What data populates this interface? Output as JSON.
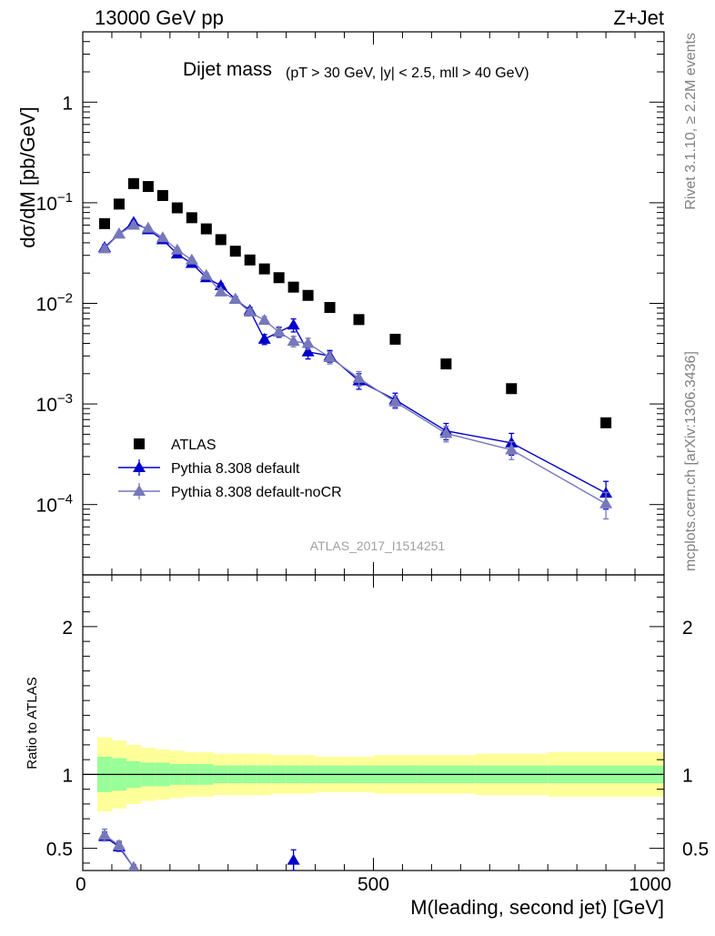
{
  "header": {
    "left": "13000 GeV pp",
    "right": "Z+Jet"
  },
  "side": {
    "rivet": "Rivet 3.1.10, ≥ 2.2M events",
    "mcplots": "mcplots.cern.ch [arXiv:1306.3436]"
  },
  "plot_title": {
    "main": "Dijet mass",
    "cuts": "(pT > 30 GeV, |y| < 2.5, mll > 40 GeV)"
  },
  "watermark": "ATLAS_2017_I1514251",
  "colors": {
    "atlas": "#000000",
    "pythia_default": "#0000cc",
    "pythia_nocr": "#7777bb",
    "band_outer": "#ffff99",
    "band_inner": "#99ff99"
  },
  "chart_data": [
    {
      "type": "scatter",
      "name": "main",
      "ylabel": "dσ/dM [pb/GeV]",
      "xlim": [
        0,
        1000
      ],
      "ylim": [
        2e-05,
        5
      ],
      "yscale": "log",
      "yticks": [
        {
          "value": 1,
          "base": "1",
          "exp": ""
        },
        {
          "value": 0.1,
          "base": "10",
          "exp": "−1"
        },
        {
          "value": 0.01,
          "base": "10",
          "exp": "−2"
        },
        {
          "value": 0.001,
          "base": "10",
          "exp": "−3"
        },
        {
          "value": 0.0001,
          "base": "10",
          "exp": "−4"
        }
      ],
      "legend_placement": "bottom-left",
      "series": [
        {
          "name": "ATLAS",
          "marker": "square",
          "x": [
            37.5,
            62.5,
            87.5,
            112.5,
            137.5,
            162.5,
            187.5,
            212.5,
            237.5,
            262.5,
            287.5,
            312.5,
            337.5,
            362.5,
            387.5,
            425,
            475,
            537.5,
            625,
            737.5,
            900
          ],
          "y": [
            0.062,
            0.097,
            0.155,
            0.145,
            0.118,
            0.089,
            0.071,
            0.055,
            0.043,
            0.033,
            0.027,
            0.022,
            0.018,
            0.0145,
            0.012,
            0.0091,
            0.0069,
            0.0044,
            0.0025,
            0.00142,
            0.00065
          ]
        },
        {
          "name": "Pythia 8.308 default",
          "marker": "triangle",
          "x": [
            37.5,
            62.5,
            87.5,
            112.5,
            137.5,
            162.5,
            187.5,
            212.5,
            237.5,
            262.5,
            287.5,
            312.5,
            337.5,
            362.5,
            387.5,
            425,
            475,
            537.5,
            625,
            737.5,
            900
          ],
          "y": [
            0.036,
            0.049,
            0.064,
            0.054,
            0.043,
            0.031,
            0.025,
            0.018,
            0.015,
            0.011,
            0.0085,
            0.0044,
            0.0052,
            0.0061,
            0.0033,
            0.003,
            0.0017,
            0.0011,
            0.00054,
            0.00041,
            0.00013
          ],
          "yerr": [
            0.002,
            0.002,
            0.003,
            0.002,
            0.002,
            0.0015,
            0.0012,
            0.001,
            0.0008,
            0.0007,
            0.0006,
            0.0005,
            0.0006,
            0.0009,
            0.0005,
            0.0004,
            0.0003,
            0.00018,
            0.0001,
            0.0001,
            4e-05
          ]
        },
        {
          "name": "Pythia 8.308 default-noCR",
          "marker": "triangle",
          "x": [
            37.5,
            62.5,
            87.5,
            112.5,
            137.5,
            162.5,
            187.5,
            212.5,
            237.5,
            262.5,
            287.5,
            312.5,
            337.5,
            362.5,
            387.5,
            425,
            475,
            537.5,
            625,
            737.5,
            900
          ],
          "y": [
            0.035,
            0.049,
            0.06,
            0.056,
            0.045,
            0.034,
            0.027,
            0.019,
            0.013,
            0.011,
            0.0082,
            0.0068,
            0.0052,
            0.0042,
            0.004,
            0.0029,
            0.0018,
            0.00105,
            0.00051,
            0.00035,
            0.000102
          ],
          "yerr": [
            0.002,
            0.002,
            0.003,
            0.002,
            0.002,
            0.0015,
            0.0012,
            0.001,
            0.0008,
            0.0007,
            0.0006,
            0.0006,
            0.0005,
            0.0005,
            0.0005,
            0.0004,
            0.0003,
            0.00015,
            9e-05,
            7e-05,
            3e-05
          ]
        }
      ]
    },
    {
      "type": "scatter",
      "name": "ratio",
      "ylabel": "Ratio to ATLAS",
      "xlabel": "M(leading, second jet) [GeV]",
      "xlim": [
        0,
        1000
      ],
      "ylim": [
        0.35,
        2.35
      ],
      "xticks": [
        0,
        500,
        1000
      ],
      "yticks": [
        0.5,
        1,
        2
      ],
      "band_edges": [
        25,
        50,
        75,
        100,
        125,
        150,
        175,
        200,
        225,
        250,
        275,
        300,
        325,
        350,
        375,
        400,
        450,
        500,
        575,
        675,
        800,
        1000
      ],
      "band_outer": [
        0.25,
        0.23,
        0.2,
        0.18,
        0.17,
        0.16,
        0.15,
        0.15,
        0.14,
        0.14,
        0.14,
        0.14,
        0.13,
        0.13,
        0.13,
        0.12,
        0.12,
        0.13,
        0.13,
        0.14,
        0.15
      ],
      "band_inner": [
        0.12,
        0.11,
        0.09,
        0.08,
        0.08,
        0.07,
        0.07,
        0.07,
        0.06,
        0.06,
        0.06,
        0.06,
        0.06,
        0.06,
        0.06,
        0.06,
        0.06,
        0.06,
        0.06,
        0.06,
        0.06
      ],
      "series": [
        {
          "name": "Pythia 8.308 default",
          "x": [
            37.5,
            62.5,
            87.5,
            362.5
          ],
          "y": [
            0.58,
            0.51,
            0.37,
            0.42
          ],
          "yerr": [
            0.03,
            0.03,
            0.02,
            0.07
          ]
        },
        {
          "name": "Pythia 8.308 default-noCR",
          "x": [
            37.5,
            62.5,
            87.5
          ],
          "y": [
            0.59,
            0.52,
            0.37
          ],
          "yerr": [
            0.04,
            0.03,
            0.02
          ]
        }
      ]
    }
  ]
}
